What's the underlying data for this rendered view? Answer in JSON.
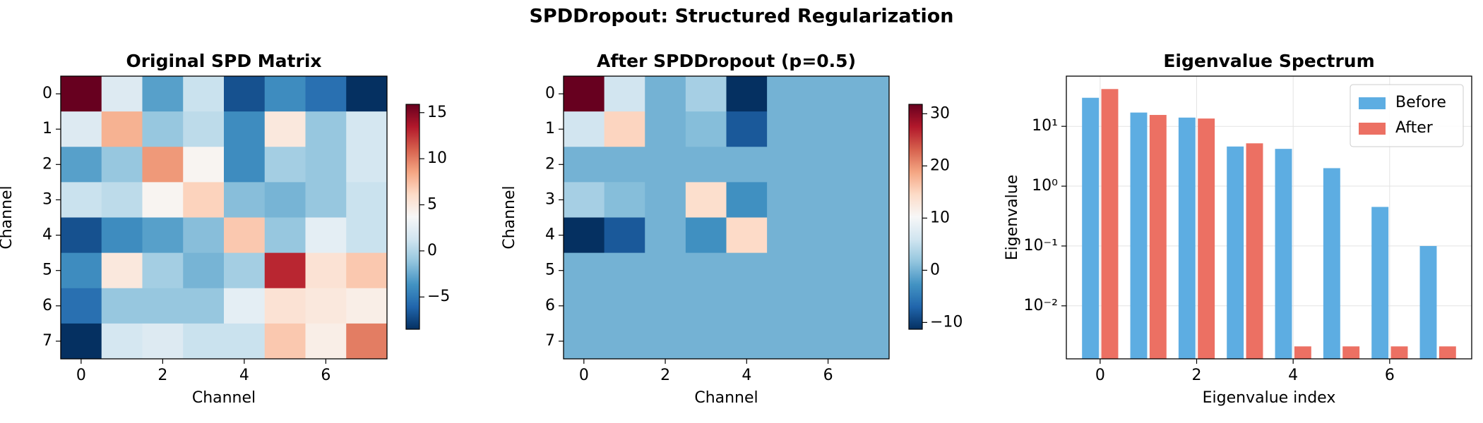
{
  "title": "SPDDropout: Structured Regularization",
  "chart_data": [
    {
      "type": "heatmap",
      "title": "Original SPD Matrix",
      "xlabel": "Channel",
      "ylabel": "Channel",
      "colormap": "RdBu_r",
      "values": [
        [
          15.9,
          2,
          -3,
          1,
          -7,
          -4,
          -5.5,
          -8.5
        ],
        [
          2,
          8,
          -1,
          0.5,
          -4,
          5,
          -1,
          1.5
        ],
        [
          -3,
          -1,
          9,
          4,
          -4,
          -0.5,
          -1,
          1.5
        ],
        [
          1,
          0.5,
          4,
          6.5,
          -1.5,
          -2,
          -1,
          1
        ],
        [
          -7,
          -4,
          -3,
          -1.5,
          7,
          -1,
          2.5,
          1
        ],
        [
          -4,
          5,
          -0.5,
          -2,
          -0.5,
          13,
          5.5,
          7
        ],
        [
          -5.5,
          -1,
          -1,
          -1,
          2.5,
          5.5,
          5,
          4.5
        ],
        [
          -8.5,
          1.5,
          2,
          1,
          1,
          7,
          4.5,
          10
        ]
      ],
      "xlim": [
        -0.5,
        7.5
      ],
      "ylim": [
        7.5,
        -0.5
      ],
      "xticks": [
        0,
        2,
        4,
        6
      ],
      "yticks": [
        0,
        1,
        2,
        3,
        4,
        5,
        6,
        7
      ],
      "clim": [
        -8.5,
        15.9
      ],
      "cticks": [
        {
          "value": -5,
          "label": "−5"
        },
        0,
        5,
        10,
        15
      ]
    },
    {
      "type": "heatmap",
      "title": "After SPDDropout (p=0.5)",
      "xlabel": "Channel",
      "ylabel": "Channel",
      "colormap": "RdBu_r",
      "values": [
        [
          31.8,
          6,
          0,
          3,
          -11.3,
          0,
          0,
          0
        ],
        [
          6,
          15,
          0,
          1,
          -8,
          0,
          0,
          0
        ],
        [
          0,
          0,
          0,
          0,
          0,
          0,
          0,
          0
        ],
        [
          3,
          1,
          0,
          14,
          -3,
          0,
          0,
          0
        ],
        [
          -11.3,
          -8,
          0,
          -3,
          14.5,
          0,
          0,
          0
        ],
        [
          0,
          0,
          0,
          0,
          0,
          0,
          0,
          0
        ],
        [
          0,
          0,
          0,
          0,
          0,
          0,
          0,
          0
        ],
        [
          0,
          0,
          0,
          0,
          0,
          0,
          0,
          0
        ]
      ],
      "xlim": [
        -0.5,
        7.5
      ],
      "ylim": [
        7.5,
        -0.5
      ],
      "xticks": [
        0,
        2,
        4,
        6
      ],
      "yticks": [
        0,
        1,
        2,
        3,
        4,
        5,
        6,
        7
      ],
      "clim": [
        -11.3,
        31.8
      ],
      "cticks": [
        {
          "value": -10,
          "label": "−10"
        },
        0,
        10,
        20,
        30
      ]
    },
    {
      "type": "bar",
      "title": "Eigenvalue Spectrum",
      "xlabel": "Eigenvalue index",
      "ylabel": "Eigenvalue",
      "x": [
        0,
        1,
        2,
        3,
        4,
        5,
        6,
        7
      ],
      "series": [
        {
          "name": "Before",
          "color": "#5dade2",
          "values": [
            30,
            17,
            14,
            4.6,
            4.2,
            2.0,
            0.45,
            0.1
          ]
        },
        {
          "name": "After",
          "color": "#ec7063",
          "values": [
            42,
            15.5,
            13.5,
            5.2,
            0.0021,
            0.0021,
            0.0021,
            0.0021
          ]
        }
      ],
      "log": true,
      "grid": true,
      "legend": "upper right",
      "xlim": [
        -0.7,
        7.7
      ],
      "xticks": [
        0,
        2,
        4,
        6
      ],
      "ylim": [
        0.0013,
        69
      ],
      "yticks": [
        {
          "value": 0.01,
          "label": "10⁻²"
        },
        {
          "value": 0.1,
          "label": "10⁻¹"
        },
        {
          "value": 1,
          "label": "10⁰"
        },
        {
          "value": 10,
          "label": "10¹"
        }
      ]
    }
  ]
}
